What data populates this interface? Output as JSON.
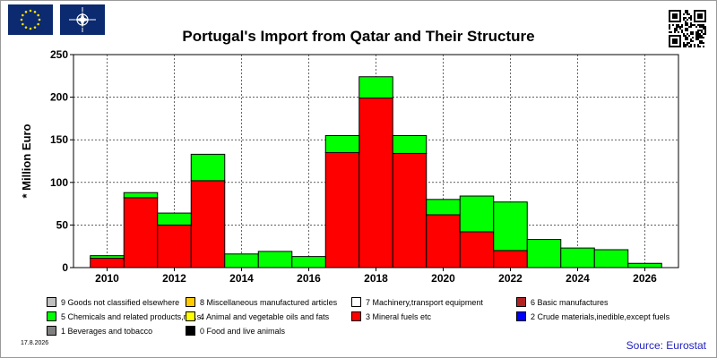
{
  "header": {
    "eu_flag_icon": "eu-flag-icon",
    "nato_flag_icon": "nato-flag-icon",
    "qr_icon": "qr-code-icon"
  },
  "chart_data": {
    "type": "bar",
    "stacked": true,
    "title": "Portugal's Import from Qatar and Their Structure",
    "ylabel": "* Million Euro",
    "xlabel": "",
    "ylim": [
      0,
      250
    ],
    "yticks": [
      "0",
      "50",
      "100",
      "150",
      "200",
      "250"
    ],
    "xlim": [
      2009,
      2027
    ],
    "xticks": [
      "2010",
      "2012",
      "2014",
      "2016",
      "2018",
      "2020",
      "2022",
      "2024",
      "2026"
    ],
    "grid": true,
    "legend_position": "bottom",
    "x": [
      2010,
      2011,
      2012,
      2013,
      2014,
      2015,
      2016,
      2017,
      2018,
      2019,
      2020,
      2021,
      2022,
      2023,
      2024,
      2025,
      2026
    ],
    "series": [
      {
        "name": "3 Mineral fuels etc",
        "color": "#ff0000",
        "values": [
          11,
          82,
          50,
          102,
          0,
          0,
          0,
          135,
          199,
          134,
          62,
          42,
          20,
          0,
          0,
          0,
          0
        ]
      },
      {
        "name": "5 Chemicals and related products,n.e.s.",
        "color": "#00ff00",
        "values": [
          3,
          6,
          14,
          31,
          16,
          19,
          13,
          20,
          25,
          21,
          18,
          42,
          57,
          33,
          23,
          21,
          5
        ]
      }
    ],
    "legend": [
      {
        "name": "9 Goods not classified elsewhere",
        "color": "#c0c0c0"
      },
      {
        "name": "8 Miscellaneous manufactured articles",
        "color": "#ffcc00"
      },
      {
        "name": "7 Machinery,transport equipment",
        "color": "#ffffff"
      },
      {
        "name": "6 Basic manufactures",
        "color": "#b22222"
      },
      {
        "name": "5 Chemicals and related products,n.e.s.",
        "color": "#00ff00"
      },
      {
        "name": "4 Animal and vegetable oils and fats",
        "color": "#ffff00"
      },
      {
        "name": "3 Mineral fuels etc",
        "color": "#ff0000"
      },
      {
        "name": "2 Crude materials,inedible,except fuels",
        "color": "#0000ff"
      },
      {
        "name": "1 Beverages and tobacco",
        "color": "#808080"
      },
      {
        "name": "0 Food and live animals",
        "color": "#000000"
      }
    ]
  },
  "footer": {
    "date": "17.8.2026",
    "source": "Source: Eurostat"
  }
}
